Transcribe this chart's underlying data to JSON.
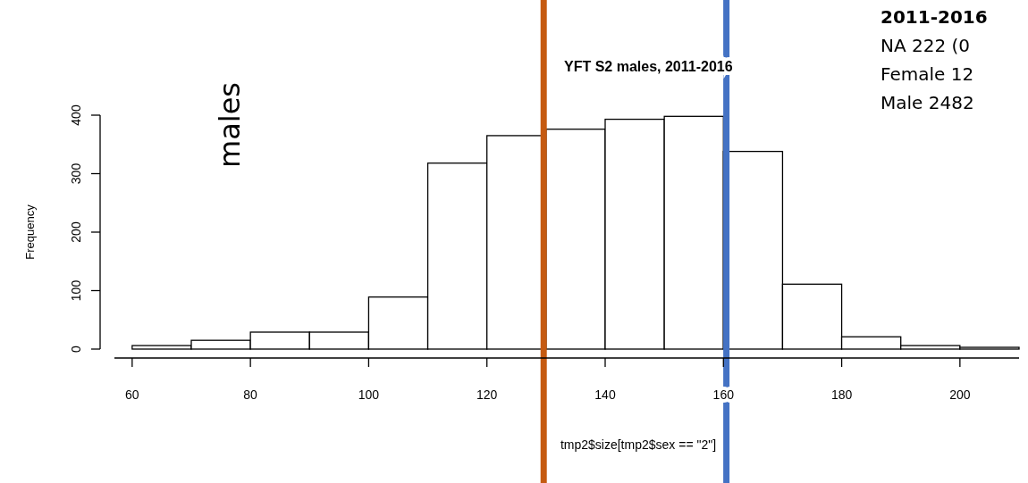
{
  "chart_data": {
    "type": "histogram",
    "title": "YFT S2 males, 2011-2016",
    "xlabel": "tmp2$size[tmp2$sex == \"2\"]",
    "ylabel": "Frequency",
    "bins": [
      60,
      70,
      80,
      90,
      100,
      110,
      120,
      130,
      140,
      150,
      160,
      170,
      180,
      190,
      200,
      210
    ],
    "values": [
      6,
      15,
      29,
      29,
      89,
      318,
      365,
      376,
      393,
      398,
      338,
      111,
      21,
      6,
      3
    ],
    "color": "#ffffff",
    "xlim": [
      57,
      210
    ],
    "ylim": [
      0,
      400
    ],
    "xticks": [
      60,
      80,
      100,
      120,
      140,
      160,
      180,
      200
    ],
    "yticks": [
      0,
      100,
      200,
      300,
      400
    ],
    "ref_lines": [
      {
        "axis": "x",
        "value": 129.6,
        "color": "#c55a11"
      },
      {
        "axis": "x",
        "value": 160.5,
        "color": "#4472c4"
      }
    ],
    "annotations": [
      "males",
      "2011-2016",
      "NA 222 (0",
      "Female 12",
      "Male 2482"
    ],
    "grid": false
  }
}
